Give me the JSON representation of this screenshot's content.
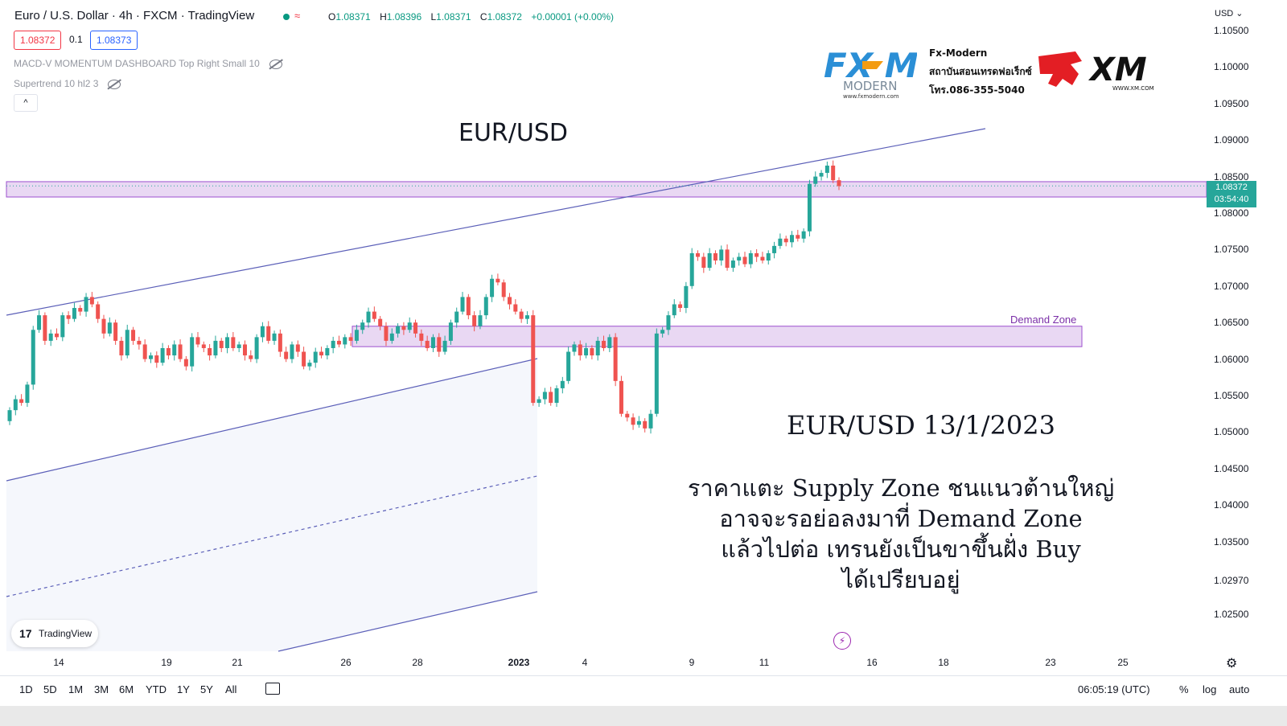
{
  "header": {
    "title": "Euro / U.S. Dollar · 4h · FXCM · TradingView",
    "ohlc": {
      "o_label": "O",
      "o": "1.08371",
      "h_label": "H",
      "h": "1.08396",
      "l_label": "L",
      "l": "1.08371",
      "c_label": "C",
      "c": "1.08372",
      "change": "+0.00001 (+0.00%)"
    },
    "bid": "1.08372",
    "spread": "0.1",
    "ask": "1.08373",
    "indicators": [
      "MACD-V MOMENTUM DASHBOARD Top Right Small 10",
      "Supertrend 10 hl2 3"
    ],
    "collapse": "^"
  },
  "logos": {
    "fx_brand": "FX MODERN",
    "fx_url": "www.fxmodern.com",
    "fx_lines": [
      "Fx-Modern",
      "สถาบันสอนเทรดฟอเร็กซ์",
      "โทร.086-355-5040"
    ],
    "xm_brand": "XM",
    "xm_url": "WWW.XM.COM"
  },
  "annotations": {
    "title": "EUR/USD",
    "date": "EUR/USD 13/1/2023",
    "comment": [
      "ราคาแตะ Supply Zone ชนแนวต้านใหญ่",
      "อาจจะรอย่อลงมาที่ Demand Zone",
      "แล้วไปต่อ เทรนยังเป็นขาขึ้นฝั่ง Buy",
      "ได้เปรียบอยู่"
    ],
    "demand_zone": "Demand Zone"
  },
  "price_tag": {
    "price": "1.08372",
    "countdown": "03:54:40"
  },
  "bottom_bar": {
    "ranges": [
      "1D",
      "5D",
      "1M",
      "3M",
      "6M",
      "YTD",
      "1Y",
      "5Y",
      "All"
    ],
    "clock": "06:05:19 (UTC)",
    "percent": "%",
    "log": "log",
    "auto": "auto"
  },
  "branding": {
    "tv_mark": "17",
    "tv_name": "TradingView"
  },
  "colors": {
    "up": "#26a69a",
    "down": "#ef5350",
    "zone": "#e1cbef",
    "zone_border": "#9c4fcf",
    "channel": "#5b5fb8"
  },
  "chart_data": {
    "type": "candlestick",
    "currency": "USD",
    "ylim": [
      1.0225,
      1.1085
    ],
    "y_ticks": [
      "1.10500",
      "1.10000",
      "1.09500",
      "1.09000",
      "1.08500",
      "1.08000",
      "1.07500",
      "1.07000",
      "1.06500",
      "1.06000",
      "1.05500",
      "1.05000",
      "1.04500",
      "1.04000",
      "1.03500",
      "1.02970",
      "1.02500"
    ],
    "x_ticks": [
      "14",
      "19",
      "21",
      "26",
      "28",
      "2023",
      "4",
      "9",
      "11",
      "16",
      "18",
      "23",
      "25"
    ],
    "supply_zone": [
      1.0822,
      1.0843
    ],
    "demand_zone": [
      1.0617,
      1.0645
    ],
    "closes": [
      1.053,
      1.0545,
      1.054,
      1.0565,
      1.064,
      1.066,
      1.0625,
      1.0635,
      1.063,
      1.066,
      1.0655,
      1.067,
      1.0665,
      1.0685,
      1.0675,
      1.0655,
      1.0635,
      1.065,
      1.0625,
      1.0605,
      1.064,
      1.0625,
      1.062,
      1.06,
      1.0605,
      1.0595,
      1.0615,
      1.0605,
      1.062,
      1.06,
      1.059,
      1.063,
      1.062,
      1.0615,
      1.0605,
      1.0625,
      1.0615,
      1.063,
      1.0615,
      1.062,
      1.0605,
      1.06,
      1.063,
      1.0645,
      1.0625,
      1.0635,
      1.061,
      1.06,
      1.062,
      1.061,
      1.059,
      1.0595,
      1.061,
      1.0605,
      1.0615,
      1.0625,
      1.062,
      1.063,
      1.0625,
      1.064,
      1.065,
      1.0665,
      1.0655,
      1.0645,
      1.0625,
      1.0635,
      1.0645,
      1.064,
      1.065,
      1.0635,
      1.0625,
      1.0615,
      1.063,
      1.061,
      1.0625,
      1.065,
      1.0665,
      1.0685,
      1.066,
      1.0645,
      1.066,
      1.0685,
      1.071,
      1.0705,
      1.0685,
      1.0675,
      1.0665,
      1.0655,
      1.066,
      1.054,
      1.0545,
      1.0555,
      1.054,
      1.056,
      1.057,
      1.061,
      1.062,
      1.0605,
      1.0615,
      1.0605,
      1.0625,
      1.0615,
      1.063,
      1.057,
      1.0525,
      1.052,
      1.051,
      1.0515,
      1.0505,
      1.0525,
      1.0635,
      1.064,
      1.066,
      1.0675,
      1.067,
      1.07,
      1.0745,
      1.074,
      1.0725,
      1.0745,
      1.0735,
      1.075,
      1.0725,
      1.0735,
      1.074,
      1.073,
      1.0745,
      1.074,
      1.0735,
      1.0745,
      1.0755,
      1.0765,
      1.076,
      1.077,
      1.0765,
      1.0775,
      1.084,
      1.085,
      1.0855,
      1.0865,
      1.0845,
      1.0837
    ]
  }
}
